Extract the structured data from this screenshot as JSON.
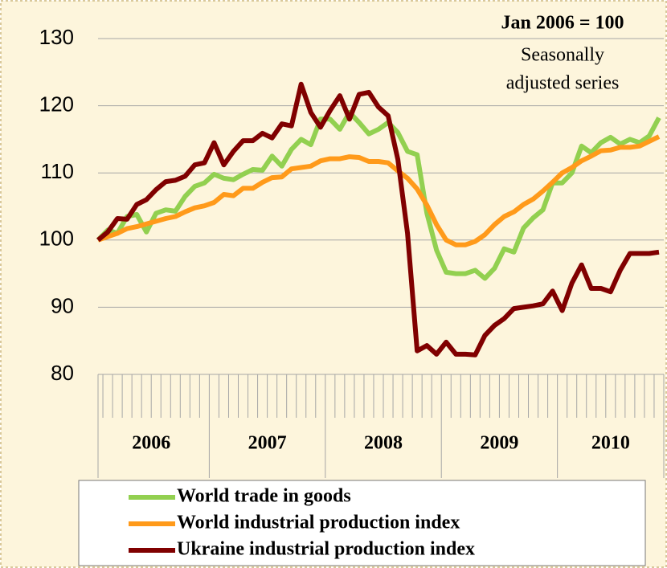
{
  "chart_data": {
    "type": "line",
    "annotation_title": "Jan 2006 = 100",
    "annotation_lines": [
      "Seasonally",
      "adjusted series"
    ],
    "categories": [
      null,
      null,
      null,
      null,
      null,
      null,
      null,
      null,
      null,
      null,
      null,
      null,
      null,
      null,
      null,
      null,
      null,
      null,
      null,
      null,
      null,
      null,
      null,
      null,
      null,
      null,
      null,
      null,
      null,
      null,
      null,
      null,
      null,
      null,
      null,
      null,
      null,
      null,
      null,
      null,
      null,
      null,
      null,
      null,
      null,
      null,
      null,
      null,
      null,
      null,
      null,
      null,
      null,
      null,
      null,
      null,
      null,
      null,
      null
    ],
    "year_labels": [
      "2006",
      "2007",
      "2008",
      "2009",
      "2010"
    ],
    "ylim": [
      80,
      130
    ],
    "yticks": [
      80,
      90,
      100,
      110,
      120,
      130
    ],
    "grid": true,
    "series": [
      {
        "name": "World trade in goods",
        "color": "#92d050",
        "values": [
          100,
          101.5,
          101,
          103.5,
          103.8,
          101.2,
          104,
          104.5,
          104.3,
          106.5,
          108,
          108.5,
          109.8,
          109.2,
          109,
          109.8,
          110.5,
          110.4,
          112.5,
          111,
          113.5,
          115,
          114.2,
          118,
          118,
          116.5,
          119,
          117.5,
          115.8,
          116.5,
          117.5,
          116,
          113.2,
          112.7,
          104,
          98.5,
          95.2,
          95,
          95,
          95.5,
          94.3,
          95.8,
          98.7,
          98.2,
          101.8,
          103.3,
          104.5,
          108.5,
          108.5,
          110,
          114,
          113,
          114.5,
          115.3,
          114.3,
          115,
          114.5,
          115.5,
          118.2
        ]
      },
      {
        "name": "World industrial production index",
        "color": "#ff9a1a",
        "values": [
          100,
          100.5,
          101,
          101.7,
          102,
          102.4,
          102.8,
          103.2,
          103.5,
          104.2,
          104.8,
          105.1,
          105.6,
          106.8,
          106.6,
          107.7,
          107.7,
          108.6,
          109.3,
          109.4,
          110.6,
          110.8,
          111,
          111.8,
          112.1,
          112.1,
          112.4,
          112.3,
          111.7,
          111.7,
          111.5,
          110.3,
          109.2,
          107.6,
          105.2,
          102.3,
          100,
          99.3,
          99.3,
          99.8,
          100.8,
          102.3,
          103.5,
          104.2,
          105.3,
          106.1,
          107.3,
          108.6,
          110,
          110.8,
          111.8,
          112.5,
          113.3,
          113.4,
          113.8,
          113.8,
          114,
          114.7,
          115.4
        ]
      },
      {
        "name": "Ukraine industrial production index",
        "color": "#800000",
        "values": [
          100,
          101.2,
          103.2,
          103.1,
          105.3,
          106,
          107.5,
          108.7,
          108.9,
          109.5,
          111.2,
          111.5,
          114.5,
          111.2,
          113.2,
          114.8,
          114.8,
          115.9,
          115.2,
          117.3,
          117,
          123.2,
          119,
          116.8,
          119.3,
          121.5,
          118,
          121.7,
          122,
          119.8,
          118.5,
          112,
          101,
          83.5,
          84.3,
          83,
          84.8,
          83,
          83,
          82.9,
          85.8,
          87.3,
          88.3,
          89.8,
          90,
          90.2,
          90.5,
          92.4,
          89.5,
          93.6,
          96.3,
          92.8,
          92.8,
          92.3,
          95.5,
          98,
          98,
          98,
          98.2
        ]
      }
    ]
  }
}
